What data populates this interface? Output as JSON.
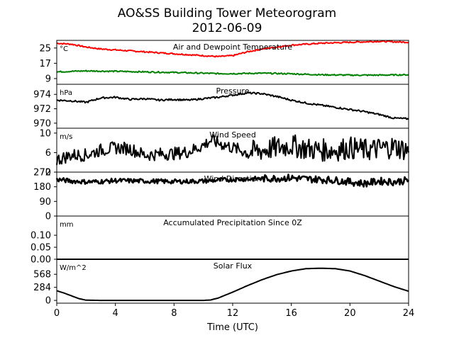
{
  "figure": {
    "title_line1": "AO&SS Building Tower Meteorogram",
    "title_line2": "2012-06-09",
    "xlabel": "Time (UTC)"
  },
  "chart_data": [
    {
      "type": "line",
      "title": "Air and Dewpoint Temperature",
      "unit": "°C",
      "ylim": [
        6,
        29
      ],
      "yticks": [
        9,
        17,
        25
      ],
      "xlim": [
        0,
        24
      ],
      "series": [
        {
          "color": "#ff0000",
          "x": [
            0,
            1,
            2,
            3,
            4,
            6,
            8,
            10,
            11,
            12,
            13,
            14,
            15,
            16,
            18,
            20,
            22,
            24
          ],
          "values": [
            27.5,
            27,
            25.5,
            24.5,
            24,
            23,
            22,
            21,
            20.5,
            21,
            23,
            24.5,
            25.5,
            26.5,
            27.5,
            28,
            28.5,
            28
          ]
        },
        {
          "color": "#008000",
          "x": [
            0,
            1,
            2,
            4,
            6,
            8,
            10,
            11,
            12,
            14,
            16,
            18,
            20,
            22,
            24
          ],
          "values": [
            12.5,
            12.8,
            13,
            12.8,
            12.5,
            12.2,
            11.8,
            11.6,
            11.6,
            11.8,
            11.5,
            11,
            10.8,
            10.8,
            11
          ]
        }
      ]
    },
    {
      "type": "line",
      "title": "Pressure",
      "unit": "hPa",
      "ylim": [
        969.3,
        975.4
      ],
      "yticks": [
        970,
        972,
        974
      ],
      "xlim": [
        0,
        24
      ],
      "series": [
        {
          "color": "#000000",
          "x": [
            0,
            1,
            2,
            3,
            4,
            5,
            6,
            7,
            8,
            9,
            10,
            11,
            12,
            13,
            14,
            15,
            16,
            17,
            18,
            19,
            20,
            21,
            22,
            23,
            24
          ],
          "values": [
            973.2,
            973.1,
            972.9,
            973.5,
            973.6,
            973.3,
            973.4,
            973.2,
            973.3,
            973.2,
            973.4,
            973.6,
            973.9,
            974.2,
            974.1,
            973.7,
            973.2,
            972.8,
            972.5,
            972.2,
            971.9,
            971.6,
            971.2,
            970.7,
            970.6
          ]
        }
      ]
    },
    {
      "type": "line",
      "title": "Wind Speed",
      "unit": "m/s",
      "ylim": [
        2,
        11
      ],
      "yticks": [
        2,
        6,
        10
      ],
      "xlim": [
        0,
        24
      ],
      "series": [
        {
          "color": "#000000",
          "x": [
            0,
            1,
            2,
            3,
            4,
            5,
            6,
            7,
            8,
            9,
            10,
            10.5,
            11,
            12,
            13,
            14,
            15,
            16,
            17,
            18,
            19,
            20,
            21,
            22,
            23,
            24
          ],
          "values": [
            4.5,
            5.5,
            5.5,
            6.5,
            7.0,
            6.8,
            5.5,
            5.7,
            5.8,
            6.2,
            7.5,
            8.5,
            8.0,
            7.0,
            6.0,
            6.5,
            7.0,
            7.5,
            6.8,
            6.5,
            6.5,
            7.0,
            6.5,
            6.8,
            7.2,
            6.5
          ]
        }
      ]
    },
    {
      "type": "line",
      "title": "Wind Direction",
      "unit": "",
      "ylim": [
        0,
        270
      ],
      "yticks": [
        0,
        90,
        180,
        270
      ],
      "xlim": [
        0,
        24
      ],
      "series": [
        {
          "color": "#000000",
          "x": [
            0,
            1,
            2,
            3,
            4,
            6,
            8,
            10,
            12,
            14,
            15,
            16,
            17,
            18,
            19,
            20,
            21,
            22,
            23,
            24
          ],
          "values": [
            225,
            215,
            210,
            212,
            218,
            215,
            212,
            215,
            225,
            230,
            232,
            235,
            228,
            225,
            220,
            210,
            200,
            215,
            210,
            220
          ]
        }
      ]
    },
    {
      "type": "line",
      "title": "Accumulated Precipitation Since 0Z",
      "unit": "mm",
      "ylim": [
        0,
        0.18
      ],
      "yticks": [
        0.0,
        0.05,
        0.1
      ],
      "ytick_labels": [
        "0.00",
        "0.05",
        "0.10"
      ],
      "xlim": [
        0,
        24
      ],
      "series": [
        {
          "color": "#000000",
          "x": [
            0,
            24
          ],
          "values": [
            0,
            0
          ]
        }
      ]
    },
    {
      "type": "line",
      "title": "Solar Flux",
      "unit": "W/m^2",
      "ylim": [
        -60,
        895
      ],
      "yticks": [
        0,
        284,
        568
      ],
      "xlim": [
        0,
        24
      ],
      "xticks": [
        0,
        4,
        8,
        12,
        16,
        20,
        24
      ],
      "series": [
        {
          "color": "#000000",
          "x": [
            0,
            0.5,
            1,
            1.5,
            2,
            3,
            4,
            6,
            8,
            10,
            10.5,
            11,
            12,
            13,
            14,
            15,
            16,
            17,
            18,
            19,
            20,
            21,
            22,
            23,
            24
          ],
          "values": [
            210,
            160,
            100,
            40,
            5,
            0,
            0,
            0,
            0,
            0,
            10,
            50,
            180,
            320,
            450,
            560,
            640,
            690,
            700,
            690,
            640,
            540,
            420,
            300,
            200
          ]
        }
      ]
    }
  ]
}
